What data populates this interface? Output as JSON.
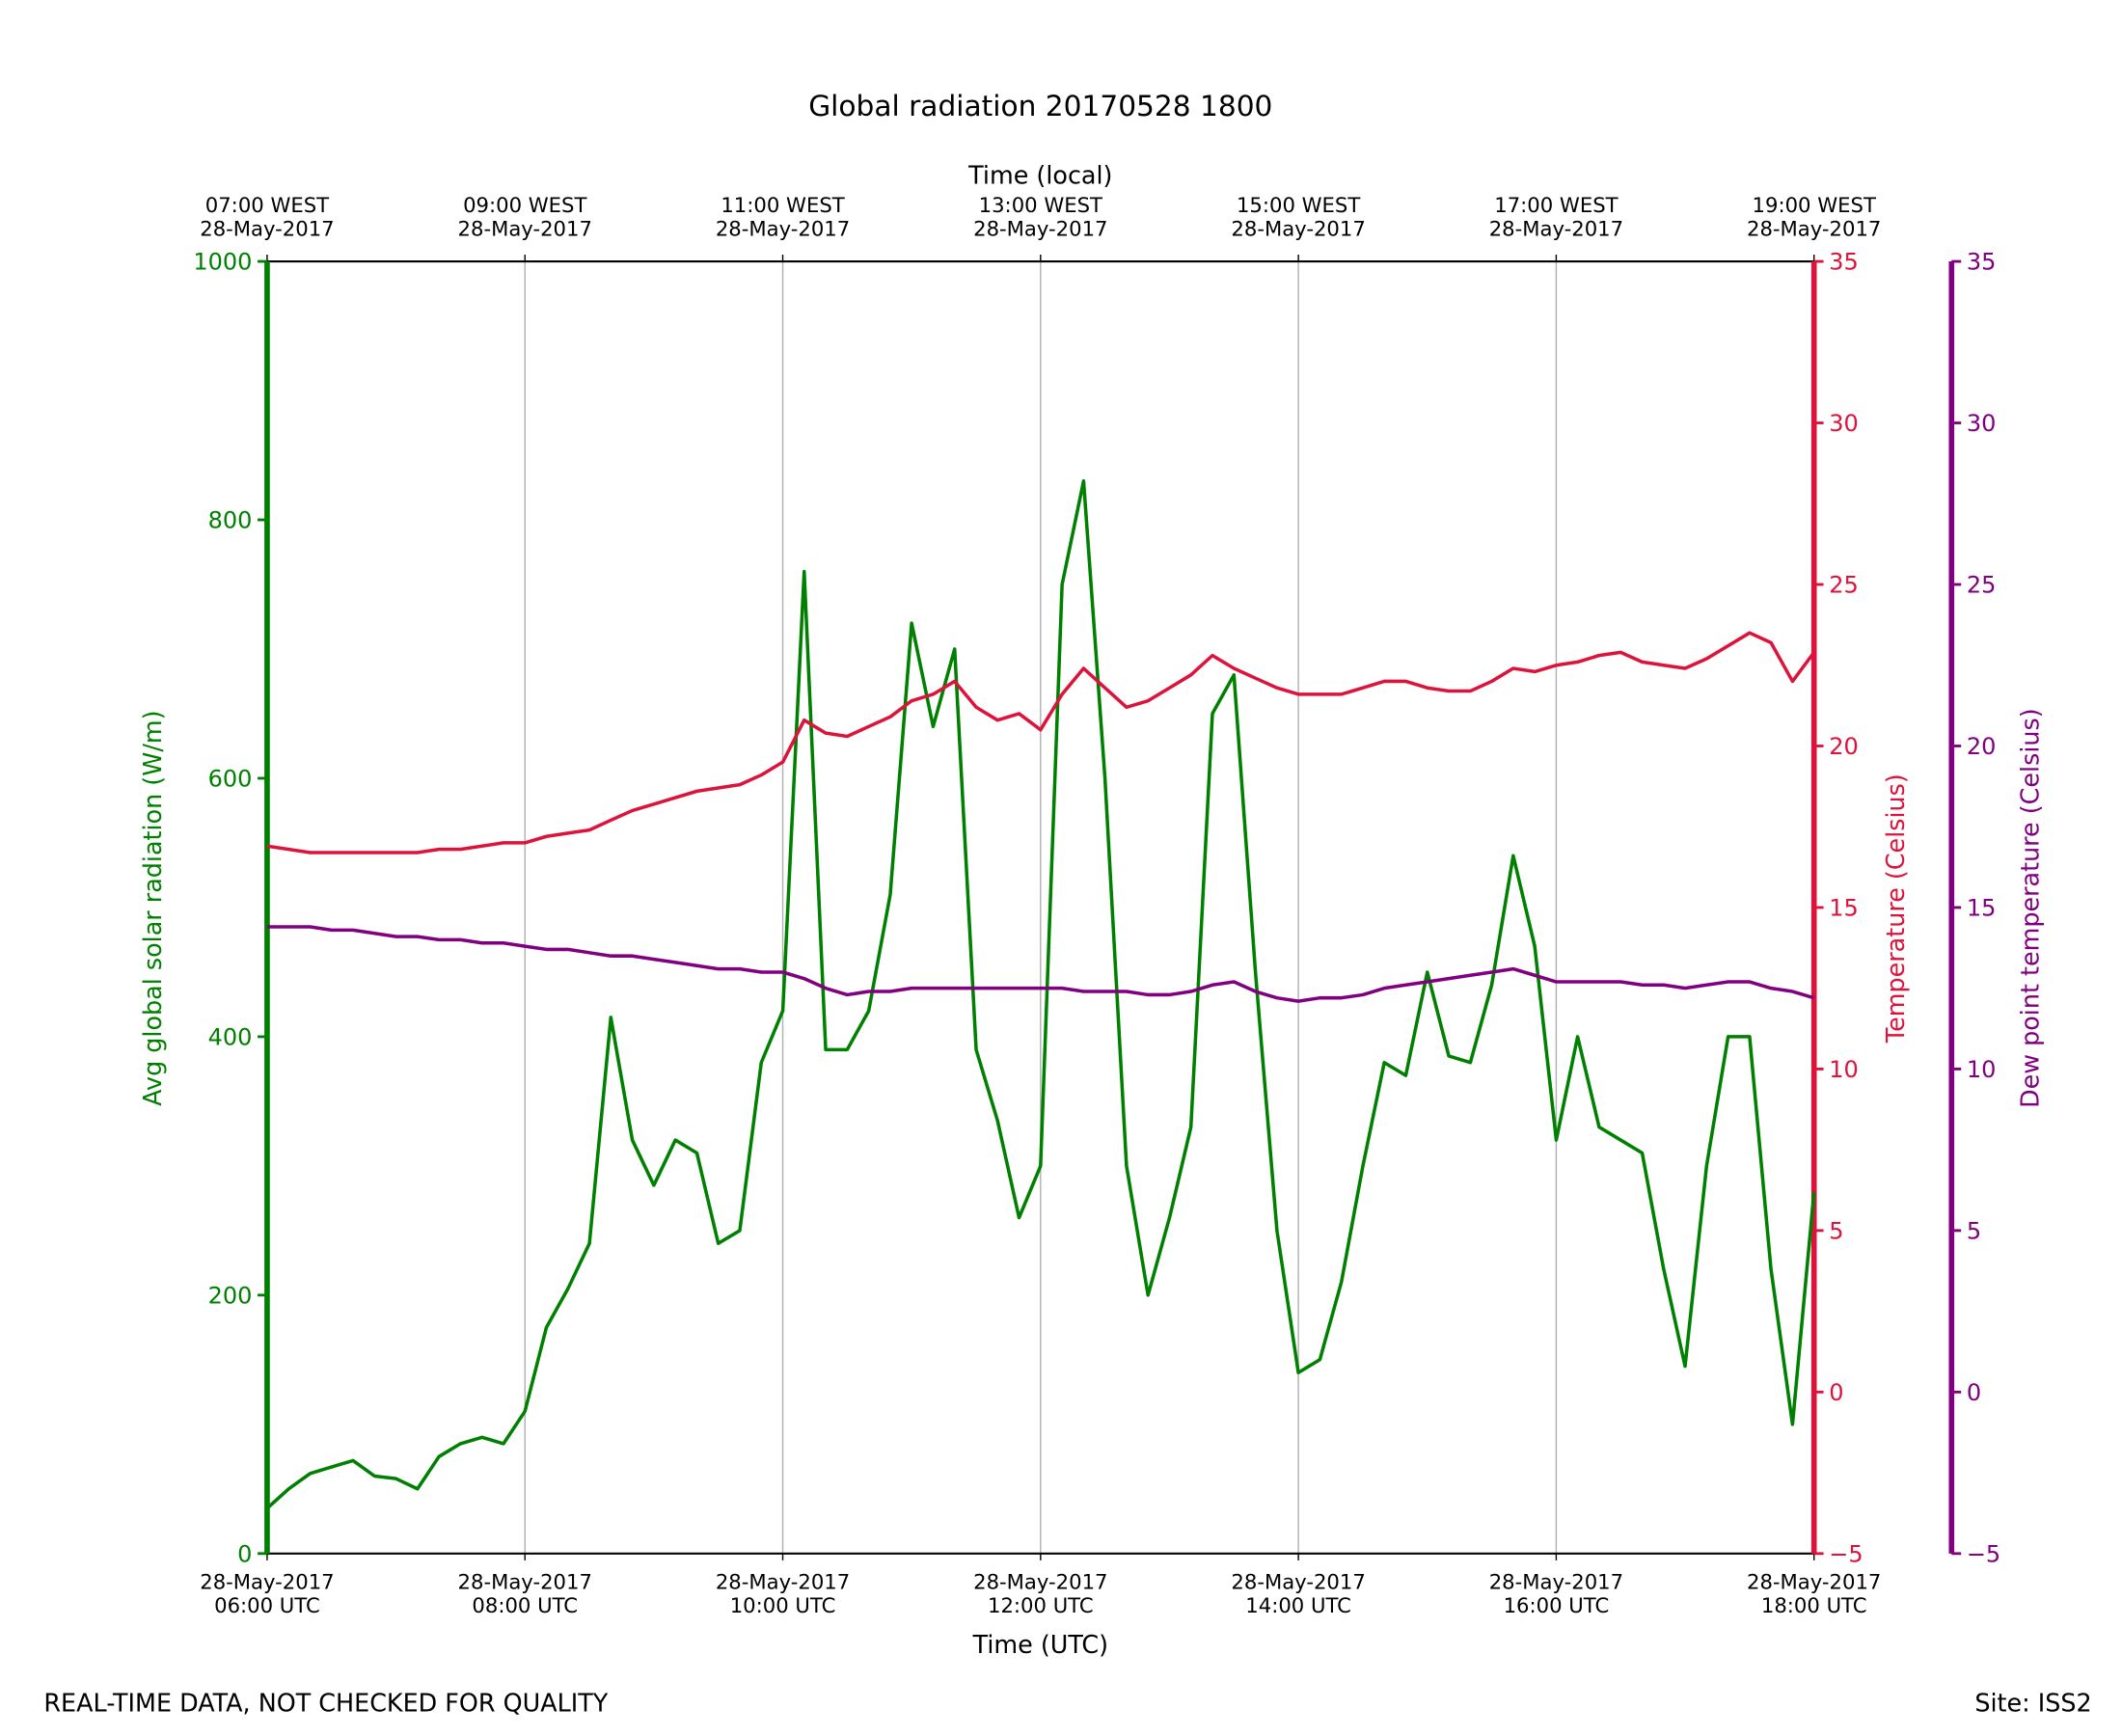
{
  "chart_data": {
    "type": "line",
    "title": "Global radiation 20170528 1800",
    "xlabel": "Time (UTC)",
    "x2label": "Time (local)",
    "ylabel": "Avg global solar radiation (W/m)",
    "y2label": "Temperature (Celsius)",
    "y3label": "Dew point temperature (Celsius)",
    "footer_left": "REAL-TIME DATA, NOT CHECKED FOR QUALITY",
    "footer_right": "Site: ISS2",
    "grid": true,
    "xlim": [
      "2017-05-28 06:00",
      "2017-05-28 18:00"
    ],
    "xticks": [
      {
        "value": "2017-05-28 06:00",
        "label": "28-May-2017\n06:00 UTC"
      },
      {
        "value": "2017-05-28 08:00",
        "label": "28-May-2017\n08:00 UTC"
      },
      {
        "value": "2017-05-28 10:00",
        "label": "28-May-2017\n10:00 UTC"
      },
      {
        "value": "2017-05-28 12:00",
        "label": "28-May-2017\n12:00 UTC"
      },
      {
        "value": "2017-05-28 14:00",
        "label": "28-May-2017\n14:00 UTC"
      },
      {
        "value": "2017-05-28 16:00",
        "label": "28-May-2017\n16:00 UTC"
      },
      {
        "value": "2017-05-28 18:00",
        "label": "28-May-2017\n18:00 UTC"
      }
    ],
    "x2ticks": [
      {
        "value": "2017-05-28 06:00",
        "label": "07:00 WEST\n28-May-2017"
      },
      {
        "value": "2017-05-28 08:00",
        "label": "09:00 WEST\n28-May-2017"
      },
      {
        "value": "2017-05-28 10:00",
        "label": "11:00 WEST\n28-May-2017"
      },
      {
        "value": "2017-05-28 12:00",
        "label": "13:00 WEST\n28-May-2017"
      },
      {
        "value": "2017-05-28 14:00",
        "label": "15:00 WEST\n28-May-2017"
      },
      {
        "value": "2017-05-28 16:00",
        "label": "17:00 WEST\n28-May-2017"
      },
      {
        "value": "2017-05-28 18:00",
        "label": "19:00 WEST\n28-May-2017"
      }
    ],
    "ylim": [
      0,
      1000
    ],
    "yticks": [
      0,
      200,
      400,
      600,
      800,
      1000
    ],
    "y2lim": [
      -5,
      35
    ],
    "y2ticks": [
      {
        "value": -5,
        "label": "−5"
      },
      0,
      5,
      10,
      15,
      20,
      25,
      30,
      35
    ],
    "y3lim": [
      -5,
      35
    ],
    "y3ticks": [
      {
        "value": -5,
        "label": "−5"
      },
      0,
      5,
      10,
      15,
      20,
      25,
      30,
      35
    ],
    "x": [
      "2017-05-28 06:00",
      "2017-05-28 06:10",
      "2017-05-28 06:20",
      "2017-05-28 06:30",
      "2017-05-28 06:40",
      "2017-05-28 06:50",
      "2017-05-28 07:00",
      "2017-05-28 07:10",
      "2017-05-28 07:20",
      "2017-05-28 07:30",
      "2017-05-28 07:40",
      "2017-05-28 07:50",
      "2017-05-28 08:00",
      "2017-05-28 08:10",
      "2017-05-28 08:20",
      "2017-05-28 08:30",
      "2017-05-28 08:40",
      "2017-05-28 08:50",
      "2017-05-28 09:00",
      "2017-05-28 09:10",
      "2017-05-28 09:20",
      "2017-05-28 09:30",
      "2017-05-28 09:40",
      "2017-05-28 09:50",
      "2017-05-28 10:00",
      "2017-05-28 10:10",
      "2017-05-28 10:20",
      "2017-05-28 10:30",
      "2017-05-28 10:40",
      "2017-05-28 10:50",
      "2017-05-28 11:00",
      "2017-05-28 11:10",
      "2017-05-28 11:20",
      "2017-05-28 11:30",
      "2017-05-28 11:40",
      "2017-05-28 11:50",
      "2017-05-28 12:00",
      "2017-05-28 12:10",
      "2017-05-28 12:20",
      "2017-05-28 12:30",
      "2017-05-28 12:40",
      "2017-05-28 12:50",
      "2017-05-28 13:00",
      "2017-05-28 13:10",
      "2017-05-28 13:20",
      "2017-05-28 13:30",
      "2017-05-28 13:40",
      "2017-05-28 13:50",
      "2017-05-28 14:00",
      "2017-05-28 14:10",
      "2017-05-28 14:20",
      "2017-05-28 14:30",
      "2017-05-28 14:40",
      "2017-05-28 14:50",
      "2017-05-28 15:00",
      "2017-05-28 15:10",
      "2017-05-28 15:20",
      "2017-05-28 15:30",
      "2017-05-28 15:40",
      "2017-05-28 15:50",
      "2017-05-28 16:00",
      "2017-05-28 16:10",
      "2017-05-28 16:20",
      "2017-05-28 16:30",
      "2017-05-28 16:40",
      "2017-05-28 16:50",
      "2017-05-28 17:00",
      "2017-05-28 17:10",
      "2017-05-28 17:20",
      "2017-05-28 17:30",
      "2017-05-28 17:40",
      "2017-05-28 17:50",
      "2017-05-28 18:00"
    ],
    "series": [
      {
        "name": "Avg global solar radiation",
        "color": "#008000",
        "axis": "y",
        "values": [
          35,
          50,
          62,
          67,
          72,
          60,
          58,
          50,
          75,
          85,
          90,
          85,
          110,
          175,
          205,
          240,
          415,
          320,
          285,
          320,
          310,
          240,
          250,
          380,
          420,
          760,
          390,
          390,
          420,
          510,
          720,
          640,
          700,
          390,
          335,
          260,
          300,
          750,
          830,
          600,
          300,
          200,
          260,
          330,
          650,
          680,
          450,
          250,
          140,
          150,
          210,
          300,
          380,
          370,
          450,
          385,
          380,
          440,
          540,
          470,
          320,
          400,
          330,
          320,
          310,
          220,
          145,
          300,
          400,
          400,
          220,
          100,
          280
        ]
      },
      {
        "name": "Temperature",
        "color": "#dc143c",
        "axis": "y2",
        "values": [
          16.9,
          16.8,
          16.7,
          16.7,
          16.7,
          16.7,
          16.7,
          16.7,
          16.8,
          16.8,
          16.9,
          17.0,
          17.0,
          17.2,
          17.3,
          17.4,
          17.7,
          18.0,
          18.2,
          18.4,
          18.6,
          18.7,
          18.8,
          19.1,
          19.5,
          20.8,
          20.4,
          20.3,
          20.6,
          20.9,
          21.4,
          21.6,
          22.0,
          21.2,
          20.8,
          21.0,
          20.5,
          21.6,
          22.4,
          21.8,
          21.2,
          21.4,
          21.8,
          22.2,
          22.8,
          22.4,
          22.1,
          21.8,
          21.6,
          21.6,
          21.6,
          21.8,
          22.0,
          22.0,
          21.8,
          21.7,
          21.7,
          22.0,
          22.4,
          22.3,
          22.5,
          22.6,
          22.8,
          22.9,
          22.6,
          22.5,
          22.4,
          22.7,
          23.1,
          23.5,
          23.2,
          22.0,
          22.9
        ]
      },
      {
        "name": "Dew point temperature",
        "color": "#800080",
        "axis": "y3",
        "values": [
          14.4,
          14.4,
          14.4,
          14.3,
          14.3,
          14.2,
          14.1,
          14.1,
          14.0,
          14.0,
          13.9,
          13.9,
          13.8,
          13.7,
          13.7,
          13.6,
          13.5,
          13.5,
          13.4,
          13.3,
          13.2,
          13.1,
          13.1,
          13.0,
          13.0,
          12.8,
          12.5,
          12.3,
          12.4,
          12.4,
          12.5,
          12.5,
          12.5,
          12.5,
          12.5,
          12.5,
          12.5,
          12.5,
          12.4,
          12.4,
          12.4,
          12.3,
          12.3,
          12.4,
          12.6,
          12.7,
          12.4,
          12.2,
          12.1,
          12.2,
          12.2,
          12.3,
          12.5,
          12.6,
          12.7,
          12.8,
          12.9,
          13.0,
          13.1,
          12.9,
          12.7,
          12.7,
          12.7,
          12.7,
          12.6,
          12.6,
          12.5,
          12.6,
          12.7,
          12.7,
          12.5,
          12.4,
          12.2
        ]
      }
    ]
  }
}
